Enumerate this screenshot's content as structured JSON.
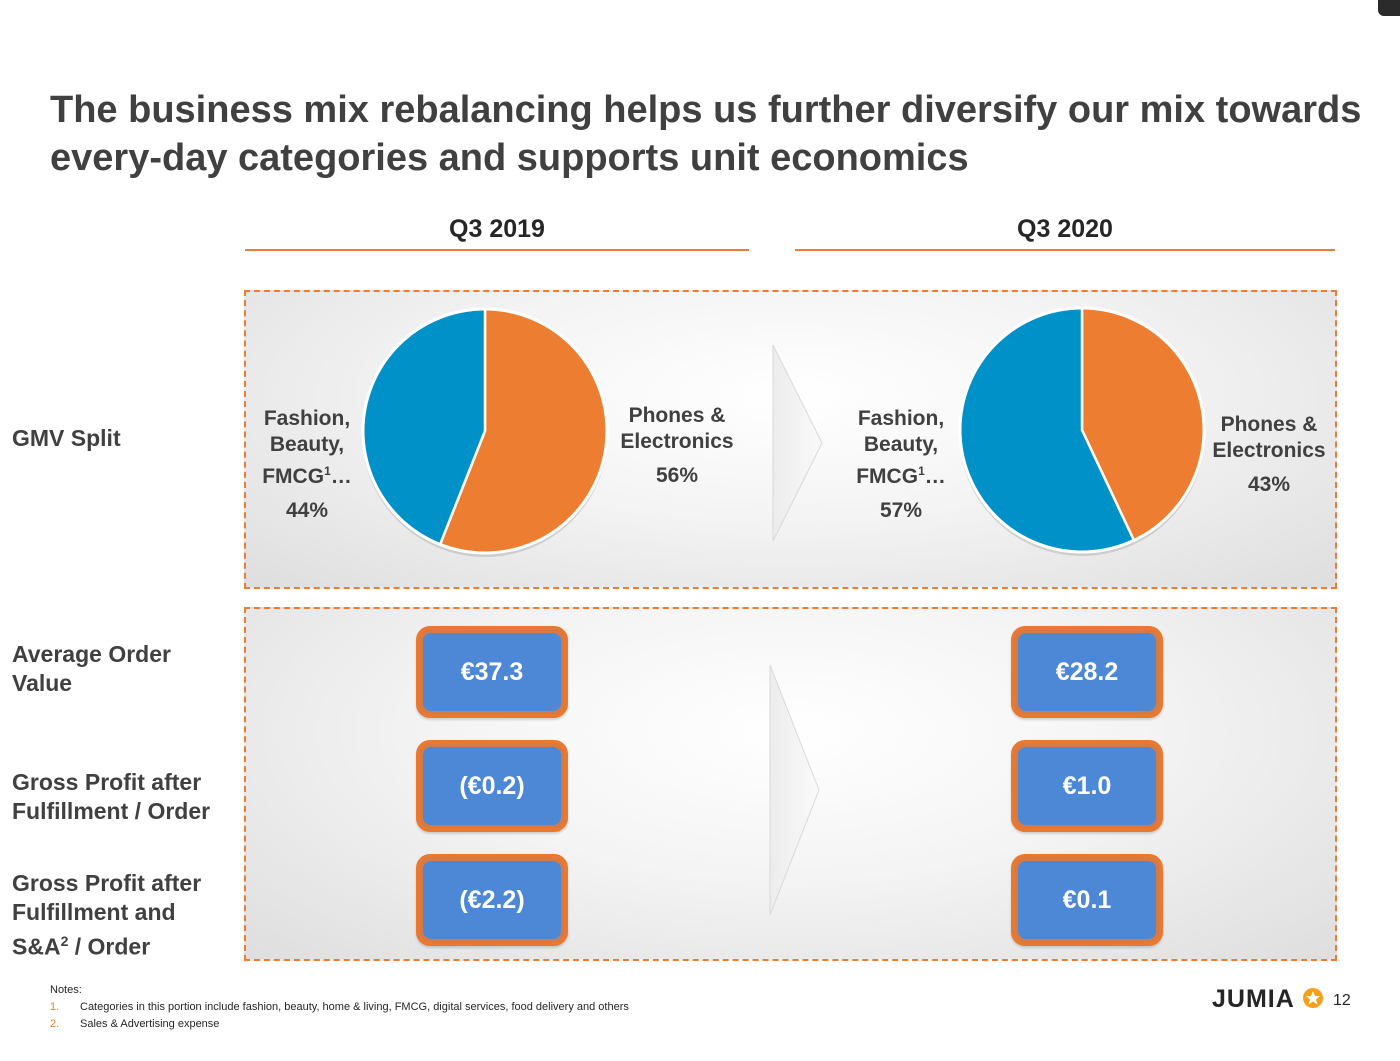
{
  "slide": {
    "title": "The business mix rebalancing helps us further diversify our mix towards every-day categories and supports unit economics",
    "page_number": "12",
    "logo_text": "JUMIA"
  },
  "columns": [
    "Q3 2019",
    "Q3 2020"
  ],
  "rows": {
    "gmv": "GMV Split",
    "aov": "Average Order Value",
    "gp_fulfillment": "Gross Profit after Fulfillment / Order",
    "gp_sa_line1": "Gross Profit after",
    "gp_sa_line2": "Fulfillment and",
    "gp_sa_line3_pre": "S&A",
    "gp_sa_line3_sup": "2",
    "gp_sa_line3_post": " / Order"
  },
  "labels": {
    "fashion_line1": "Fashion,",
    "fashion_line2": "Beauty,",
    "fashion_line3_pre": "FMCG",
    "fashion_line3_sup": "1",
    "fashion_line3_post": "…",
    "phones_line1": "Phones &",
    "phones_line2": "Electronics"
  },
  "chart_data": [
    {
      "type": "pie",
      "title": "Q3 2019",
      "slices": [
        {
          "name": "Phones & Electronics",
          "value": 56,
          "label": "56%",
          "color": "#ED7D31"
        },
        {
          "name": "Fashion, Beauty, FMCG…",
          "value": 44,
          "label": "44%",
          "color": "#0091C8"
        }
      ]
    },
    {
      "type": "pie",
      "title": "Q3 2020",
      "slices": [
        {
          "name": "Phones & Electronics",
          "value": 43,
          "label": "43%",
          "color": "#ED7D31"
        },
        {
          "name": "Fashion, Beauty, FMCG…",
          "value": 57,
          "label": "57%",
          "color": "#0091C8"
        }
      ]
    }
  ],
  "metrics": {
    "q3_2019": {
      "aov": "€37.3",
      "gp_fulfillment": "(€0.2)",
      "gp_sa": "(€2.2)"
    },
    "q3_2020": {
      "aov": "€28.2",
      "gp_fulfillment": "€1.0",
      "gp_sa": "€0.1"
    }
  },
  "notes": {
    "heading": "Notes:",
    "items": [
      {
        "num": "1.",
        "text": "Categories in this portion include fashion, beauty, home & living, FMCG, digital services, food delivery and others"
      },
      {
        "num": "2.",
        "text": "Sales & Advertising expense"
      }
    ]
  },
  "colors": {
    "accent": "#ED7D31",
    "blue": "#0091C8",
    "box_blue": "#4D88D6"
  }
}
